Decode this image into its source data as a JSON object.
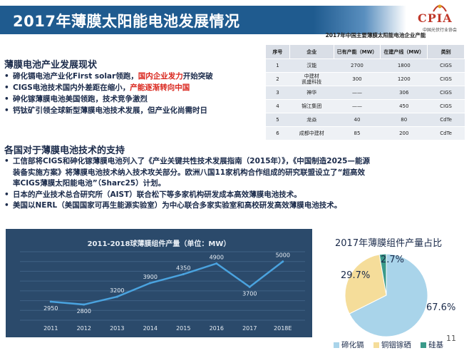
{
  "title": "2017年薄膜太阳能电池发展情况",
  "logo": {
    "text": "CPIA",
    "sub": "中国光伏行业协会"
  },
  "table": {
    "caption": "2017年中国主要薄膜太阳能电池企业产能",
    "headers": [
      "序号",
      "企业",
      "已有产能（MW）",
      "在建产线（MW）",
      "类别"
    ],
    "rows": [
      [
        "1",
        "汉能",
        "2700",
        "1800",
        "CIGS"
      ],
      [
        "2",
        "中建材\n凯盛科技",
        "300",
        "1200",
        "CIGS"
      ],
      [
        "3",
        "神华",
        "——",
        "306",
        "CIGS"
      ],
      [
        "4",
        "锦江集团",
        "——",
        "450",
        "CIGS"
      ],
      [
        "5",
        "龙焱",
        "40",
        "80",
        "CdTe"
      ],
      [
        "6",
        "成都中建材",
        "85",
        "200",
        "CdTe"
      ]
    ]
  },
  "section1": {
    "heading": "薄膜电池产业发展现状",
    "bullet_char": "•",
    "b1": {
      "a": "碲化镉电池产业化First solar领跑，",
      "b": "国内企业发力",
      "c": "开始突破"
    },
    "b2": {
      "a": "CIGS电池技术国内外差距在缩小，",
      "b": "产能逐渐转向中国"
    },
    "b3": "砷化镓薄膜电池美国领跑，技术竞争激烈",
    "b4": "钙钛矿引领全球新型薄膜电池技术发展，但产业化尚需时日"
  },
  "section2": {
    "heading": "各国对于薄膜电池技术的支持",
    "p1": [
      "工信部将CIGS和砷化镓薄膜电池列入了《产业关键共性技术发展指南（2015年）》，《中国制造2025—能源",
      "装备实施方案》将薄膜电池技术纳入技术攻关部分。欧洲八国11家机构合作组成的研究联盟设立了“超高效",
      "率CIGS薄膜太阳能电池”（Sharc25）计划。"
    ],
    "p2": "日本的产业技术总合研究所（AIST）联合松下等多家机构研发成本高效薄膜电池技术。",
    "p3": "美国以NERL（美国国家可再生能源实验室）为中心联合多家实验室和高校研发高效薄膜电池技术。"
  },
  "chart_data": [
    {
      "type": "line",
      "title": "2011-2018球薄膜组件产量（单位：MW）",
      "x": [
        "2011",
        "2012",
        "2013",
        "2014",
        "2015",
        "2016",
        "2017",
        "2018E"
      ],
      "series": [
        {
          "values": [
            2950,
            2800,
            3200,
            3900,
            4350,
            4900,
            3700,
            5000
          ]
        }
      ],
      "ylim": [
        2000,
        5500
      ],
      "grid": true,
      "colors": {
        "line": "#4aa3df",
        "background": "#2b4a6b",
        "grid": "#3f6285",
        "text": "#e8eef5"
      }
    },
    {
      "type": "pie",
      "title": "2017年薄膜组件产量占比",
      "categories": [
        "碲化镉",
        "铜铟镓硒",
        "硅基"
      ],
      "values": [
        67.6,
        29.7,
        2.7
      ],
      "labels": [
        "67.6%",
        "29.7%",
        "2.7%"
      ],
      "colors": [
        "#a9d4ea",
        "#f5dd9a",
        "#3a9a8a"
      ],
      "legend": "bottom"
    }
  ],
  "page_number": "11"
}
